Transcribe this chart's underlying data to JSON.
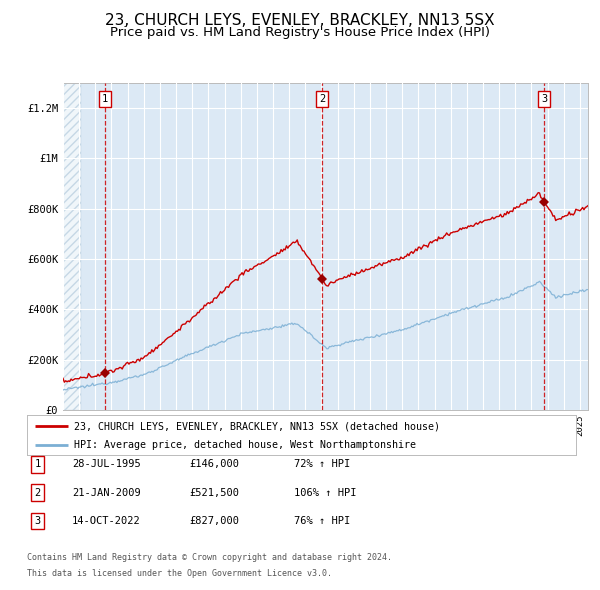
{
  "title": "23, CHURCH LEYS, EVENLEY, BRACKLEY, NN13 5SX",
  "subtitle": "Price paid vs. HM Land Registry's House Price Index (HPI)",
  "title_fontsize": 11,
  "subtitle_fontsize": 9.5,
  "background_color": "#ffffff",
  "plot_bg_color": "#dce9f5",
  "grid_color": "#ffffff",
  "red_line_color": "#cc0000",
  "blue_line_color": "#7bafd4",
  "dashed_line_color": "#cc0000",
  "marker_color": "#990000",
  "sale_dates_num": [
    1995.574,
    2009.055,
    2022.788
  ],
  "sale_prices": [
    146000,
    521500,
    827000
  ],
  "sale_labels": [
    "1",
    "2",
    "3"
  ],
  "sale_dates_str": [
    "28-JUL-1995",
    "21-JAN-2009",
    "14-OCT-2022"
  ],
  "sale_prices_str": [
    "£146,000",
    "£521,500",
    "£827,000"
  ],
  "sale_hpi_str": [
    "72% ↑ HPI",
    "106% ↑ HPI",
    "76% ↑ HPI"
  ],
  "legend_line1": "23, CHURCH LEYS, EVENLEY, BRACKLEY, NN13 5SX (detached house)",
  "legend_line2": "HPI: Average price, detached house, West Northamptonshire",
  "footer1": "Contains HM Land Registry data © Crown copyright and database right 2024.",
  "footer2": "This data is licensed under the Open Government Licence v3.0.",
  "ylim": [
    0,
    1300000
  ],
  "xlim_start": 1993.0,
  "xlim_end": 2025.5,
  "yticks": [
    0,
    200000,
    400000,
    600000,
    800000,
    1000000,
    1200000
  ],
  "ytick_labels": [
    "£0",
    "£200K",
    "£400K",
    "£600K",
    "£800K",
    "£1M",
    "£1.2M"
  ]
}
